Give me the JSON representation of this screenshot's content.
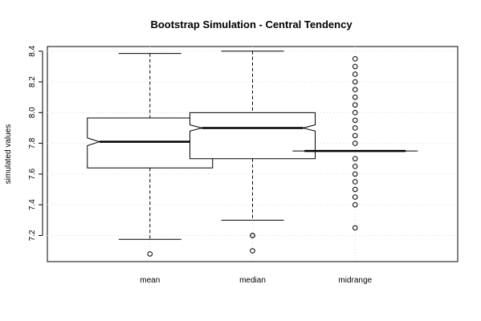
{
  "chart_data": {
    "type": "boxplot",
    "title": "Bootstrap Simulation - Central Tendency",
    "xlabel": "",
    "ylabel": "simulated values",
    "ylim": [
      7.03,
      8.43
    ],
    "yticks": [
      7.2,
      7.4,
      7.6,
      7.8,
      8.0,
      8.2,
      8.4
    ],
    "ytick_labels": [
      "7.2",
      "7.4",
      "7.6",
      "7.8",
      "8.0",
      "8.2",
      "8.4"
    ],
    "grid": true,
    "notched": true,
    "categories": [
      "mean",
      "median",
      "midrange"
    ],
    "boxes": [
      {
        "label": "mean",
        "whisker_low": 7.175,
        "q1": 7.64,
        "median": 7.81,
        "q3": 7.965,
        "whisker_high": 8.385,
        "notch_low": 7.785,
        "notch_high": 7.835,
        "outliers": [
          7.08
        ]
      },
      {
        "label": "median",
        "whisker_low": 7.3,
        "q1": 7.7,
        "median": 7.9,
        "q3": 8.0,
        "whisker_high": 8.4,
        "notch_low": 7.88,
        "notch_high": 7.92,
        "outliers": [
          7.2,
          7.2,
          7.1
        ]
      },
      {
        "label": "midrange",
        "whisker_low": 7.75,
        "q1": 7.75,
        "median": 7.75,
        "q3": 7.75,
        "whisker_high": 7.75,
        "notch_low": 7.75,
        "notch_high": 7.75,
        "outliers": [
          8.35,
          8.3,
          8.25,
          8.2,
          8.15,
          8.1,
          8.05,
          8.0,
          7.95,
          7.9,
          7.85,
          7.8,
          7.7,
          7.65,
          7.6,
          7.55,
          7.5,
          7.45,
          7.4,
          7.25
        ]
      }
    ]
  }
}
